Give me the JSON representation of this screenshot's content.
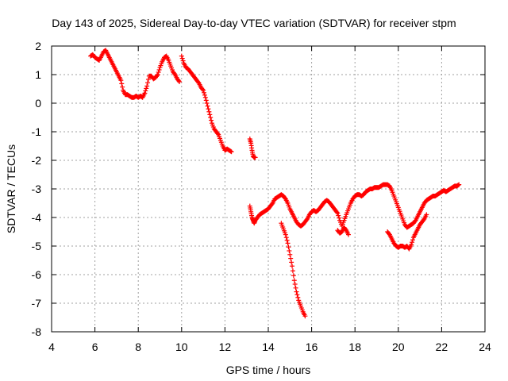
{
  "chart_data": {
    "type": "scatter",
    "title": "Day 143 of 2025, Sidereal Day-to-day VTEC variation (SDTVAR) for receiver stpm",
    "xlabel": "GPS time / hours",
    "ylabel": "SDTVAR / TECUs",
    "xlim": [
      4,
      24
    ],
    "ylim": [
      -8,
      2
    ],
    "xticks": [
      4,
      6,
      8,
      10,
      12,
      14,
      16,
      18,
      20,
      22,
      24
    ],
    "yticks": [
      -8,
      -7,
      -6,
      -5,
      -4,
      -3,
      -2,
      -1,
      0,
      1,
      2
    ],
    "grid": true,
    "marker": "+",
    "color": "#ff0000",
    "segments": [
      {
        "x": [
          5.8,
          5.9,
          6.0,
          6.1,
          6.2,
          6.3,
          6.4,
          6.5,
          6.6,
          6.7,
          6.8,
          6.9,
          7.0,
          7.1,
          7.2,
          7.3,
          7.4,
          7.5,
          7.6,
          7.7,
          7.8,
          7.9,
          8.0,
          8.1,
          8.2,
          8.3,
          8.4,
          8.5,
          8.6,
          8.7,
          8.8,
          8.9,
          9.0,
          9.1,
          9.2,
          9.3,
          9.4,
          9.5,
          9.6,
          9.7,
          9.8,
          9.9
        ],
        "y": [
          1.65,
          1.7,
          1.6,
          1.55,
          1.5,
          1.65,
          1.8,
          1.85,
          1.7,
          1.55,
          1.4,
          1.25,
          1.1,
          0.95,
          0.8,
          0.45,
          0.3,
          0.3,
          0.25,
          0.2,
          0.2,
          0.25,
          0.2,
          0.25,
          0.2,
          0.35,
          0.6,
          0.95,
          0.95,
          0.85,
          0.9,
          1.0,
          1.25,
          1.45,
          1.6,
          1.65,
          1.5,
          1.3,
          1.1,
          1.0,
          0.85,
          0.75
        ]
      },
      {
        "x": [
          10.0,
          10.1,
          10.2,
          10.3,
          10.4,
          10.5,
          10.6,
          10.7,
          10.8,
          10.9,
          11.0,
          11.1,
          11.2,
          11.3,
          11.4,
          11.5,
          11.6,
          11.7,
          11.8,
          11.9,
          12.0,
          12.1,
          12.2,
          12.3
        ],
        "y": [
          1.65,
          1.4,
          1.25,
          1.2,
          1.1,
          1.0,
          0.9,
          0.8,
          0.7,
          0.55,
          0.45,
          0.2,
          -0.1,
          -0.4,
          -0.7,
          -0.9,
          -1.0,
          -1.1,
          -1.3,
          -1.5,
          -1.65,
          -1.6,
          -1.65,
          -1.7
        ]
      },
      {
        "x": [
          13.15,
          13.2,
          13.25,
          13.3,
          13.35,
          13.4
        ],
        "y": [
          -1.25,
          -1.4,
          -1.65,
          -1.85,
          -1.9,
          -1.9
        ]
      },
      {
        "x": [
          13.15,
          13.2,
          13.25,
          13.3,
          13.35,
          13.4,
          13.5,
          13.6,
          13.7,
          13.8,
          13.9,
          14.0,
          14.1,
          14.2,
          14.3,
          14.4,
          14.5,
          14.6,
          14.7,
          14.8,
          14.9,
          15.0,
          15.1,
          15.2,
          15.3,
          15.4,
          15.5,
          15.6,
          15.7,
          15.8,
          15.9,
          16.0,
          16.1,
          16.2,
          16.3,
          16.4,
          16.5,
          16.6,
          16.7,
          16.8,
          16.9,
          17.0,
          17.1,
          17.2,
          17.3,
          17.4,
          17.5,
          17.6,
          17.7,
          17.8,
          17.9,
          18.0,
          18.1,
          18.2,
          18.3,
          18.4,
          18.5,
          18.6,
          18.7,
          18.8,
          18.9,
          19.0,
          19.1,
          19.2,
          19.3,
          19.4,
          19.5,
          19.6,
          19.7,
          19.8,
          19.9,
          20.0,
          20.1,
          20.2,
          20.3,
          20.4,
          20.5,
          20.6,
          20.7,
          20.8,
          20.9,
          21.0,
          21.1,
          21.2,
          21.3,
          21.4,
          21.5,
          21.6,
          21.7,
          21.8,
          21.9,
          22.0,
          22.1,
          22.2,
          22.3,
          22.4,
          22.5,
          22.6,
          22.7,
          22.8
        ],
        "y": [
          -3.6,
          -3.8,
          -4.0,
          -4.1,
          -4.2,
          -4.1,
          -4.0,
          -3.9,
          -3.85,
          -3.8,
          -3.75,
          -3.7,
          -3.6,
          -3.5,
          -3.35,
          -3.3,
          -3.25,
          -3.2,
          -3.25,
          -3.35,
          -3.5,
          -3.7,
          -3.85,
          -4.0,
          -4.15,
          -4.25,
          -4.3,
          -4.25,
          -4.15,
          -4.05,
          -3.9,
          -3.8,
          -3.75,
          -3.8,
          -3.75,
          -3.65,
          -3.55,
          -3.45,
          -3.4,
          -3.45,
          -3.55,
          -3.65,
          -3.75,
          -3.85,
          -4.1,
          -4.3,
          -4.1,
          -3.9,
          -3.7,
          -3.5,
          -3.35,
          -3.25,
          -3.2,
          -3.2,
          -3.25,
          -3.2,
          -3.1,
          -3.05,
          -3.0,
          -3.0,
          -2.95,
          -2.95,
          -2.95,
          -2.9,
          -2.85,
          -2.85,
          -2.85,
          -2.9,
          -3.05,
          -3.25,
          -3.45,
          -3.65,
          -3.85,
          -4.05,
          -4.25,
          -4.35,
          -4.3,
          -4.25,
          -4.2,
          -4.1,
          -3.95,
          -3.8,
          -3.65,
          -3.5,
          -3.4,
          -3.35,
          -3.3,
          -3.25,
          -3.25,
          -3.2,
          -3.15,
          -3.1,
          -3.05,
          -3.1,
          -3.05,
          -3.0,
          -2.95,
          -2.9,
          -2.9,
          -2.85
        ]
      },
      {
        "x": [
          14.6,
          14.7,
          14.8,
          14.9,
          15.0,
          15.1,
          15.2,
          15.3,
          15.4,
          15.5,
          15.6,
          15.7
        ],
        "y": [
          -4.2,
          -4.4,
          -4.6,
          -4.9,
          -5.3,
          -5.7,
          -6.2,
          -6.6,
          -6.9,
          -7.1,
          -7.3,
          -7.45
        ]
      },
      {
        "x": [
          17.2,
          17.3,
          17.4,
          17.5,
          17.6,
          17.7
        ],
        "y": [
          -4.45,
          -4.55,
          -4.5,
          -4.35,
          -4.45,
          -4.6
        ]
      },
      {
        "x": [
          19.5,
          19.6,
          19.7,
          19.8,
          19.9,
          20.0,
          20.1,
          20.2,
          20.3,
          20.4,
          20.5,
          20.6,
          20.7,
          20.8,
          20.9,
          21.0,
          21.1,
          21.2,
          21.3
        ],
        "y": [
          -4.5,
          -4.6,
          -4.75,
          -4.9,
          -5.0,
          -5.05,
          -5.0,
          -5.0,
          -5.05,
          -5.0,
          -5.1,
          -4.95,
          -4.7,
          -4.55,
          -4.4,
          -4.25,
          -4.15,
          -4.05,
          -3.9
        ]
      }
    ]
  }
}
